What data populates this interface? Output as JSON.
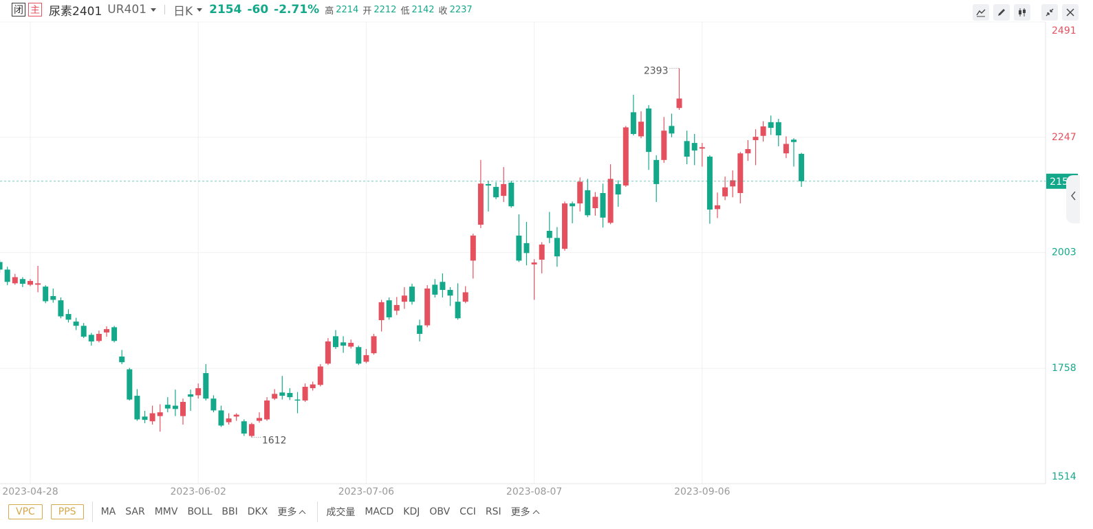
{
  "header": {
    "close_button": "闭",
    "main_tag": "主",
    "name": "尿素2401",
    "code": "UR401",
    "period": "日K",
    "change": "-60",
    "change_pct": "-2.71%",
    "high_label": "高",
    "open_label": "开",
    "low_label": "低",
    "prev_close_label": "收"
  },
  "chart_data": {
    "type": "candlestick",
    "categories": [
      null,
      null,
      null,
      null,
      "2023-04-28",
      null,
      null,
      null,
      null,
      null,
      null,
      null,
      null,
      null,
      null,
      null,
      null,
      null,
      null,
      null,
      null,
      null,
      null,
      null,
      null,
      null,
      "2023-06-02",
      null,
      null,
      null,
      null,
      null,
      null,
      null,
      null,
      null,
      null,
      null,
      null,
      null,
      null,
      null,
      null,
      null,
      null,
      null,
      null,
      null,
      "2023-07-06",
      null,
      null,
      null,
      null,
      null,
      null,
      null,
      null,
      null,
      null,
      null,
      null,
      null,
      null,
      null,
      null,
      null,
      null,
      null,
      null,
      null,
      "2023-08-07",
      null,
      null,
      null,
      null,
      null,
      null,
      null,
      null,
      null,
      null,
      null,
      null,
      null,
      null,
      null,
      null,
      null,
      null,
      null,
      null,
      null,
      "2023-09-06",
      null,
      null,
      null,
      null,
      null,
      null,
      null,
      null,
      null,
      null,
      null,
      null,
      null
    ],
    "open": [
      1983,
      1967,
      1938,
      1947,
      1935,
      1935,
      1931,
      1911,
      1902,
      1873,
      1857,
      1848,
      1829,
      1816,
      1834,
      1845,
      1783,
      1756,
      1700,
      1656,
      1646,
      1657,
      1681,
      1679,
      1657,
      1703,
      1701,
      1748,
      1694,
      1669,
      1644,
      1656,
      1646,
      1615,
      1647,
      1650,
      1694,
      1707,
      1706,
      1692,
      1690,
      1716,
      1723,
      1768,
      1826,
      1813,
      1804,
      1803,
      1772,
      1790,
      1860,
      1902,
      1880,
      1899,
      1931,
      1849,
      1849,
      1935,
      1941,
      1924,
      1899,
      1899,
      1986,
      2062,
      2148,
      2142,
      2123,
      2151,
      2039,
      2023,
      1978,
      1988,
      2049,
      2034,
      2011,
      2107,
      2107,
      2135,
      2097,
      2129,
      2066,
      2148,
      2145,
      2300,
      2249,
      2308,
      2199,
      2199,
      2271,
      2309,
      2239,
      2235,
      2223,
      2206,
      2095,
      2122,
      2143,
      2129,
      2213,
      2241,
      2250,
      2279,
      2279,
      2213,
      2242,
      2212
    ],
    "high": [
      1988,
      1973,
      1958,
      1951,
      1947,
      1975,
      1934,
      1927,
      1908,
      1883,
      1865,
      1854,
      1833,
      1838,
      1847,
      1848,
      1797,
      1759,
      1714,
      1668,
      1679,
      1682,
      1697,
      1713,
      1694,
      1713,
      1726,
      1767,
      1701,
      1679,
      1663,
      1663,
      1650,
      1643,
      1665,
      1697,
      1714,
      1742,
      1716,
      1708,
      1726,
      1730,
      1767,
      1822,
      1839,
      1826,
      1819,
      1806,
      1799,
      1831,
      1903,
      1908,
      1909,
      1930,
      1937,
      1861,
      1934,
      1947,
      1959,
      1930,
      1938,
      1932,
      2043,
      2199,
      2155,
      2152,
      2184,
      2155,
      2084,
      2068,
      1989,
      2025,
      2089,
      2057,
      2111,
      2111,
      2162,
      2159,
      2131,
      2149,
      2190,
      2156,
      2271,
      2337,
      2302,
      2315,
      2209,
      2290,
      2297,
      2393,
      2261,
      2254,
      2235,
      2209,
      2130,
      2164,
      2177,
      2216,
      2241,
      2264,
      2281,
      2293,
      2286,
      2249,
      2245,
      2214
    ],
    "low": [
      1960,
      1934,
      1935,
      1930,
      1932,
      1919,
      1896,
      1897,
      1864,
      1855,
      1839,
      1822,
      1806,
      1813,
      1825,
      1813,
      1767,
      1690,
      1647,
      1642,
      1639,
      1624,
      1665,
      1657,
      1639,
      1668,
      1694,
      1690,
      1665,
      1634,
      1639,
      1647,
      1615,
      1612,
      1643,
      1647,
      1691,
      1692,
      1691,
      1663,
      1687,
      1711,
      1720,
      1765,
      1799,
      1791,
      1800,
      1765,
      1769,
      1787,
      1836,
      1861,
      1871,
      1884,
      1893,
      1815,
      1845,
      1908,
      1908,
      1890,
      1861,
      1896,
      1948,
      2055,
      2090,
      2116,
      2110,
      2098,
      1983,
      1976,
      1903,
      1959,
      2023,
      1973,
      2007,
      2065,
      2090,
      2078,
      2081,
      2056,
      2063,
      2100,
      2142,
      2251,
      2245,
      2178,
      2110,
      2193,
      2247,
      2305,
      2190,
      2188,
      2185,
      2064,
      2076,
      2114,
      2120,
      2107,
      2197,
      2188,
      2238,
      2252,
      2228,
      2203,
      2185,
      2142
    ],
    "close": [
      1967,
      1941,
      1951,
      1937,
      1943,
      1938,
      1900,
      1903,
      1868,
      1861,
      1848,
      1825,
      1815,
      1831,
      1841,
      1816,
      1771,
      1692,
      1650,
      1649,
      1663,
      1665,
      1673,
      1672,
      1687,
      1698,
      1716,
      1694,
      1669,
      1637,
      1652,
      1660,
      1620,
      1640,
      1653,
      1690,
      1704,
      1700,
      1697,
      1690,
      1719,
      1724,
      1762,
      1815,
      1803,
      1806,
      1812,
      1768,
      1786,
      1826,
      1898,
      1866,
      1892,
      1912,
      1899,
      1831,
      1927,
      1914,
      1924,
      1912,
      1864,
      1919,
      2039,
      2149,
      2145,
      2120,
      2148,
      2101,
      1986,
      2002,
      1982,
      2020,
      2034,
      1995,
      2107,
      2101,
      2153,
      2082,
      2121,
      2077,
      2159,
      2126,
      2268,
      2254,
      2280,
      2216,
      2148,
      2261,
      2255,
      2329,
      2206,
      2219,
      2226,
      2094,
      2103,
      2141,
      2156,
      2213,
      2222,
      2248,
      2270,
      2267,
      2251,
      2233,
      2237,
      2154
    ],
    "up_color": "#e5505f",
    "down_color": "#14a88a",
    "ylim": [
      1514,
      2491
    ],
    "yticks": [
      1514,
      1758,
      2003,
      2247,
      2491
    ],
    "grid": true
  },
  "toolbar": {
    "main": [
      "VPC",
      "PPS"
    ],
    "overlays": [
      "MA",
      "SAR",
      "MMV",
      "BOLL",
      "BBI",
      "DKX"
    ],
    "overlays_more": "更多",
    "subcharts": [
      "成交量",
      "MACD",
      "KDJ",
      "OBV",
      "CCI",
      "RSI"
    ],
    "subcharts_more": "更多"
  }
}
